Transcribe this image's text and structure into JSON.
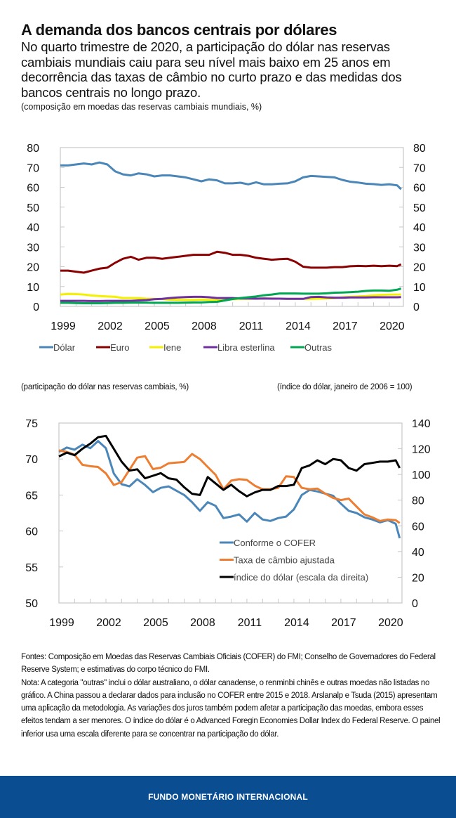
{
  "header": {
    "title": "A demanda dos bancos centrais por dólares",
    "subtitle": "No quarto trimestre de 2020, a participação do dólar nas reservas cambiais mundiais caiu para seu nível mais baixo em 25 anos em decorrência das taxas de câmbio no curto prazo e das medidas dos bancos centrais no longo prazo.",
    "unit": "(composição em moedas das reservas cambiais mundiais, %)"
  },
  "chart_data": [
    {
      "type": "line",
      "ylim": [
        0,
        80
      ],
      "yticks": [
        0,
        10,
        20,
        30,
        40,
        50,
        60,
        70,
        80
      ],
      "y2ticks": [
        0,
        10,
        20,
        30,
        40,
        50,
        60,
        70,
        80
      ],
      "xlim": [
        1999,
        2020.9
      ],
      "xticks": [
        "1999",
        "2002",
        "2005",
        "2008",
        "2011",
        "2014",
        "2017",
        "2020"
      ],
      "grid": false,
      "legend_position": "bottom",
      "x": [
        1999,
        1999.5,
        2000,
        2000.5,
        2001,
        2001.5,
        2002,
        2002.5,
        2003,
        2003.5,
        2004,
        2004.5,
        2005,
        2005.5,
        2006,
        2006.5,
        2007,
        2007.5,
        2008,
        2008.5,
        2009,
        2009.5,
        2010,
        2010.5,
        2011,
        2011.5,
        2012,
        2012.5,
        2013,
        2013.5,
        2014,
        2014.5,
        2015,
        2015.5,
        2016,
        2016.5,
        2017,
        2017.5,
        2018,
        2018.5,
        2019,
        2019.5,
        2020,
        2020.5,
        2020.75
      ],
      "series": [
        {
          "name": "Dólar",
          "color": "#4a86b8",
          "values": [
            71,
            71,
            71.5,
            72,
            71.5,
            72.5,
            71.5,
            68,
            66.5,
            66,
            67,
            66.5,
            65.5,
            66,
            66,
            65.5,
            65,
            64,
            63,
            64,
            63.5,
            62,
            62,
            62.3,
            61.5,
            62.5,
            61.5,
            61.5,
            61.8,
            62,
            63,
            65,
            65.7,
            65.5,
            65.2,
            65,
            63.7,
            62.8,
            62.4,
            61.8,
            61.6,
            61.2,
            61.5,
            61,
            59
          ]
        },
        {
          "name": "Euro",
          "color": "#8b0000",
          "values": [
            18,
            18,
            17.5,
            17,
            18,
            19,
            19.5,
            22,
            24,
            25,
            23.5,
            24.5,
            24.5,
            24,
            24.5,
            25,
            25.5,
            26,
            26,
            26,
            27.5,
            27,
            26,
            26,
            25.5,
            24.5,
            24,
            23.5,
            23.8,
            24,
            22.5,
            20,
            19.5,
            19.5,
            19.5,
            19.8,
            19.8,
            20.2,
            20.4,
            20.3,
            20.5,
            20.3,
            20.5,
            20.3,
            21.2
          ]
        },
        {
          "name": "Iene",
          "color": "#f5f000",
          "values": [
            6,
            6.3,
            6.2,
            6,
            5.5,
            5.2,
            5,
            4.8,
            4.2,
            4.2,
            4.1,
            3.9,
            3.8,
            3.7,
            3.4,
            3.3,
            3.3,
            3.3,
            3.4,
            3.3,
            3.1,
            3.2,
            3.6,
            3.8,
            3.8,
            3.9,
            4,
            4,
            3.9,
            3.8,
            3.8,
            3.8,
            3.8,
            3.9,
            4,
            4.2,
            4.6,
            4.8,
            5,
            5.2,
            5.6,
            5.8,
            5.9,
            6,
            6
          ]
        },
        {
          "name": "Libra esterlina",
          "color": "#7030a0",
          "values": [
            2.8,
            2.8,
            2.8,
            2.8,
            2.7,
            2.7,
            2.8,
            2.8,
            2.8,
            2.8,
            3,
            3.2,
            3.6,
            3.8,
            4.2,
            4.5,
            4.7,
            4.8,
            4.8,
            4.6,
            4.2,
            4.2,
            4.2,
            4,
            4,
            3.9,
            4,
            3.9,
            3.9,
            3.8,
            3.8,
            3.8,
            4.7,
            4.8,
            4.5,
            4.4,
            4.4,
            4.5,
            4.5,
            4.5,
            4.6,
            4.6,
            4.6,
            4.6,
            4.7
          ]
        },
        {
          "name": "Outras",
          "color": "#00a651",
          "values": [
            1.8,
            1.8,
            1.7,
            1.6,
            1.6,
            1.6,
            1.7,
            1.8,
            1.8,
            1.9,
            1.9,
            1.9,
            1.8,
            1.8,
            1.8,
            1.8,
            1.9,
            2,
            2,
            2.2,
            2.3,
            3,
            3.7,
            4.2,
            4.6,
            5,
            5.6,
            6,
            6.5,
            6.5,
            6.5,
            6.4,
            6.4,
            6.4,
            6.6,
            6.9,
            7,
            7.2,
            7.4,
            7.8,
            8,
            8,
            7.9,
            8.4,
            9
          ]
        }
      ]
    },
    {
      "type": "line",
      "subtitle_left": "(participação do dólar nas reservas cambiais, %)",
      "subtitle_right": "(índice do dólar, janeiro de 2006 = 100)",
      "ylim": [
        50,
        75
      ],
      "yticks": [
        50,
        55,
        60,
        65,
        70,
        75
      ],
      "y2lim": [
        0,
        140
      ],
      "y2ticks": [
        0,
        20,
        40,
        60,
        80,
        100,
        120,
        140
      ],
      "xlim": [
        1999,
        2020.9
      ],
      "xticks": [
        "1999",
        "2002",
        "2005",
        "2008",
        "2011",
        "2014",
        "2017",
        "2020"
      ],
      "grid": false,
      "legend_position": "bottom-right inside",
      "x": [
        1999,
        1999.5,
        2000,
        2000.5,
        2001,
        2001.5,
        2002,
        2002.5,
        2003,
        2003.5,
        2004,
        2004.5,
        2005,
        2005.5,
        2006,
        2006.5,
        2007,
        2007.5,
        2008,
        2008.5,
        2009,
        2009.5,
        2010,
        2010.5,
        2011,
        2011.5,
        2012,
        2012.5,
        2013,
        2013.5,
        2014,
        2014.5,
        2015,
        2015.5,
        2016,
        2016.5,
        2017,
        2017.5,
        2018,
        2018.5,
        2019,
        2019.5,
        2020,
        2020.5,
        2020.75
      ],
      "series": [
        {
          "name": "Conforme o COFER",
          "axis": "left",
          "color": "#4a86b8",
          "values": [
            71,
            71.6,
            71.3,
            72,
            71.5,
            72.5,
            71.5,
            68,
            66.5,
            66.2,
            67.2,
            66.4,
            65.4,
            66,
            66.2,
            65.6,
            65,
            64,
            62.8,
            64,
            63.5,
            61.8,
            62,
            62.3,
            61.3,
            62.5,
            61.6,
            61.4,
            61.8,
            62,
            63,
            65,
            65.7,
            65.5,
            65.2,
            64.9,
            63.8,
            62.8,
            62.5,
            61.9,
            61.6,
            61.2,
            61.5,
            61,
            59
          ]
        },
        {
          "name": "Taxa de câmbio ajustada",
          "axis": "left",
          "color": "#ed7d31",
          "values": [
            71.2,
            71,
            70.6,
            69.2,
            69,
            68.9,
            68,
            66.4,
            66.8,
            68.5,
            70.2,
            70.4,
            68.6,
            68.8,
            69.4,
            69.5,
            69.6,
            70.7,
            70,
            68.9,
            67.8,
            65.8,
            67,
            67.2,
            67.1,
            66.3,
            65.8,
            65.8,
            66,
            67.6,
            67.5,
            66,
            65.8,
            65.9,
            65.2,
            64.6,
            64.3,
            64.5,
            63.4,
            62.3,
            61.9,
            61.4,
            61.6,
            61.5,
            61.1
          ]
        },
        {
          "name": "índice do dólar (escala da direita)",
          "axis": "right",
          "color": "#000000",
          "values": [
            114,
            117,
            115,
            120,
            124,
            129,
            130,
            120,
            110,
            103,
            104,
            97,
            99,
            101,
            97,
            96,
            90,
            85,
            84,
            98,
            93,
            88,
            92,
            87,
            83,
            86,
            88,
            88,
            91,
            91,
            92,
            105,
            107,
            111,
            108,
            112,
            111,
            105,
            103,
            108,
            109,
            110,
            110,
            111,
            105
          ]
        }
      ]
    }
  ],
  "notes": {
    "sources": "Fontes: Composição em Moedas das Reservas Cambiais Oficiais (COFER) do FMI; Conselho de Governadores do Federal Reserve System; e estimativas do corpo técnico do FMI.",
    "note": "Nota: A categoria \"outras\" inclui o dólar australiano, o dólar canadense, o renminbi chinês e outras moedas não listadas no gráfico. A China passou a declarar dados para inclusão no COFER entre 2015 e 2018. Arslanalp e Tsuda (2015) apresentam uma aplicação da metodologia. As variações dos juros também podem afetar a participação das moedas, embora esses efeitos tendam a ser menores. O índice do dólar é o Advanced Foregin Economies Dollar Index do Federal Reserve. O painel inferior usa uma escala diferente para se concentrar na participação do dólar."
  },
  "footer": {
    "brand": "FUNDO MONETÁRIO INTERNACIONAL",
    "color": "#0b4d91"
  }
}
